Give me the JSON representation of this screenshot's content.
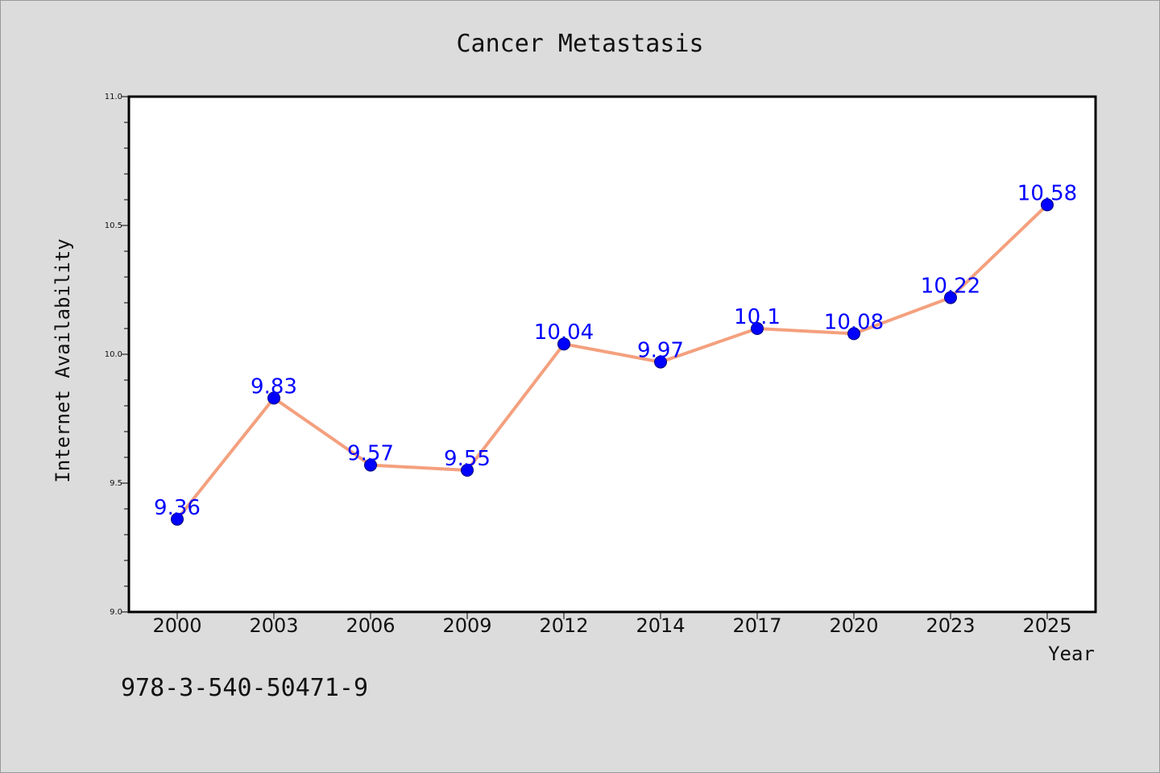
{
  "chart_data": {
    "type": "line",
    "title": "Cancer Metastasis",
    "xlabel": "Year",
    "ylabel": "Internet Availability",
    "categories": [
      "2000",
      "2003",
      "2006",
      "2009",
      "2012",
      "2014",
      "2017",
      "2020",
      "2023",
      "2025"
    ],
    "series": [
      {
        "values": [
          9.36,
          9.83,
          9.57,
          9.55,
          10.04,
          9.97,
          10.1,
          10.08,
          10.22,
          10.58
        ],
        "data_labels": [
          "9.36",
          "9.83",
          "9.57",
          "9.55",
          "10.04",
          "9.97",
          "10.1",
          "10.08",
          "10.22",
          "10.58"
        ]
      }
    ],
    "ylim": [
      9.0,
      11.0
    ],
    "y_ticks": [
      "9.0",
      "9.5",
      "10.0",
      "10.5",
      "11.0"
    ],
    "grid": false,
    "line_color": "#f4a07e",
    "marker_color": "#0000ff",
    "label_color": "#0000ff"
  },
  "footer": {
    "code": "978-3-540-50471-9"
  }
}
